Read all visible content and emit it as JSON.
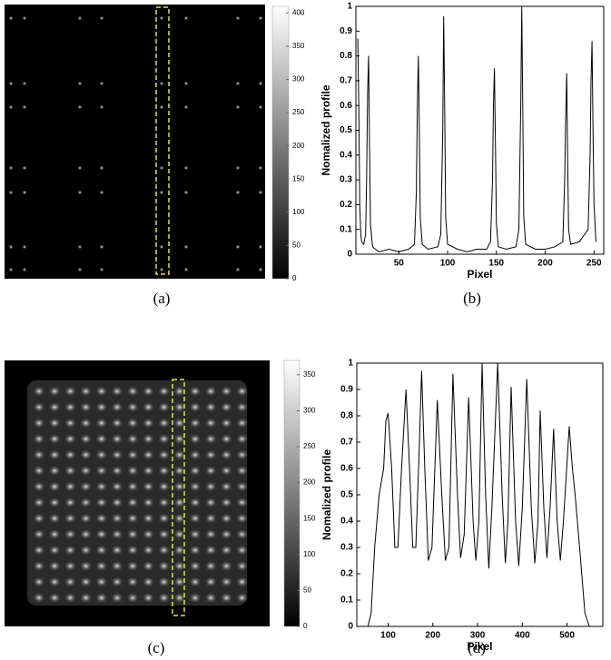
{
  "chart_data": [
    {
      "type": "image",
      "caption": "(a)",
      "ylim": [
        0,
        410
      ],
      "yticks": [
        0,
        50,
        100,
        150,
        200,
        250,
        300,
        350,
        400
      ]
    },
    {
      "type": "line",
      "caption": "(b)",
      "x_label": "Pixel",
      "y_label": "Nomalized profile",
      "xlim": [
        6,
        260
      ],
      "xticks": [
        50,
        100,
        150,
        200,
        250
      ],
      "ylim": [
        0,
        1
      ],
      "yticks": [
        0,
        0.1,
        0.2,
        0.3,
        0.4,
        0.5,
        0.6,
        0.7,
        0.8,
        0.9,
        1
      ],
      "color": "#000000",
      "x": [
        8,
        9,
        10,
        11,
        12,
        14,
        16,
        17,
        18,
        19,
        20,
        21,
        23,
        26,
        30,
        40,
        50,
        60,
        66,
        68,
        69,
        70,
        71,
        72,
        74,
        80,
        90,
        93,
        95,
        96,
        97,
        98,
        100,
        110,
        120,
        130,
        140,
        144,
        146,
        147,
        148,
        149,
        150,
        152,
        160,
        170,
        173,
        175,
        176,
        177,
        178,
        180,
        190,
        200,
        210,
        218,
        220,
        221,
        222,
        223,
        224,
        226,
        235,
        244,
        246,
        247,
        248,
        249,
        250,
        252
      ],
      "values": [
        0.87,
        0.6,
        0.2,
        0.08,
        0.05,
        0.04,
        0.08,
        0.3,
        0.65,
        0.8,
        0.45,
        0.12,
        0.03,
        0.02,
        0.01,
        0.02,
        0.01,
        0.02,
        0.04,
        0.25,
        0.6,
        0.8,
        0.5,
        0.15,
        0.04,
        0.02,
        0.03,
        0.08,
        0.5,
        0.96,
        0.6,
        0.15,
        0.04,
        0.02,
        0.01,
        0.02,
        0.02,
        0.05,
        0.3,
        0.6,
        0.75,
        0.45,
        0.12,
        0.03,
        0.02,
        0.03,
        0.1,
        0.6,
        1,
        0.6,
        0.15,
        0.04,
        0.02,
        0.02,
        0.03,
        0.05,
        0.3,
        0.55,
        0.73,
        0.4,
        0.1,
        0.04,
        0.05,
        0.1,
        0.4,
        0.7,
        0.86,
        0.5,
        0.2,
        0.05
      ]
    },
    {
      "type": "image",
      "caption": "(c)",
      "ylim": [
        0,
        370
      ],
      "yticks": [
        0,
        50,
        100,
        150,
        200,
        250,
        300,
        350
      ]
    },
    {
      "type": "line",
      "caption": "(d)",
      "x_label": "Pixel",
      "y_label": "Nomalized profile",
      "xlim": [
        30,
        580
      ],
      "xticks": [
        100,
        200,
        300,
        400,
        500
      ],
      "ylim": [
        0,
        1
      ],
      "yticks": [
        0,
        0.1,
        0.2,
        0.3,
        0.4,
        0.5,
        0.6,
        0.7,
        0.8,
        0.9,
        1
      ],
      "color": "#000000",
      "x": [
        55,
        62,
        70,
        80,
        90,
        95,
        100,
        108,
        115,
        122,
        130,
        140,
        148,
        155,
        162,
        170,
        175,
        182,
        190,
        198,
        210,
        220,
        228,
        236,
        245,
        255,
        262,
        270,
        280,
        290,
        296,
        303,
        310,
        318,
        325,
        332,
        345,
        355,
        362,
        368,
        375,
        385,
        392,
        400,
        410,
        420,
        428,
        435,
        440,
        448,
        455,
        462,
        470,
        478,
        485,
        492,
        505,
        512,
        518,
        528,
        540,
        550
      ],
      "values": [
        0,
        0.05,
        0.3,
        0.5,
        0.6,
        0.78,
        0.81,
        0.6,
        0.3,
        0.3,
        0.6,
        0.9,
        0.6,
        0.3,
        0.3,
        0.7,
        0.97,
        0.6,
        0.25,
        0.3,
        0.86,
        0.5,
        0.25,
        0.3,
        0.96,
        0.5,
        0.26,
        0.35,
        0.87,
        0.4,
        0.25,
        0.4,
        1,
        0.5,
        0.22,
        0.45,
        1,
        0.5,
        0.24,
        0.4,
        0.91,
        0.4,
        0.23,
        0.45,
        0.94,
        0.45,
        0.24,
        0.4,
        0.82,
        0.45,
        0.26,
        0.45,
        0.75,
        0.4,
        0.25,
        0.4,
        0.76,
        0.6,
        0.5,
        0.3,
        0.05,
        0
      ]
    }
  ]
}
